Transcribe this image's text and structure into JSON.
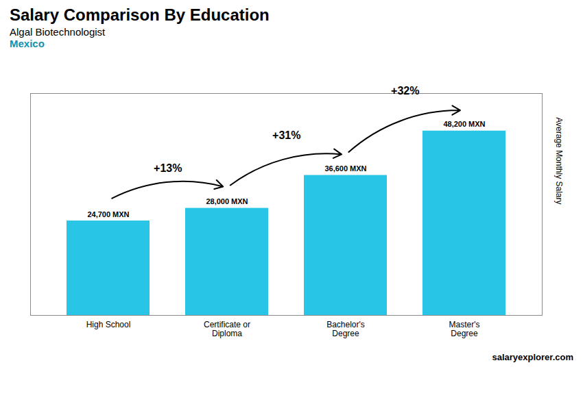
{
  "chart_data": {
    "type": "bar",
    "title": "Salary Comparison By Education",
    "subtitle": "Algal Biotechnologist\nMexico",
    "caption": "salaryexplorer.com",
    "ylabel": "Average Monthly Salary",
    "categories": [
      "High School",
      "Certificate or\nDiploma",
      "Bachelor's\nDegree",
      "Master's\nDegree"
    ],
    "values": [
      24700,
      28000,
      36600,
      48200
    ],
    "value_labels": [
      "24,700 MXN",
      "28,000 MXN",
      "36,600 MXN",
      "48,200 MXN"
    ],
    "data_labels": true,
    "color": "#29C5E6",
    "ylim": [
      0,
      58000
    ],
    "tick_labels": "x",
    "grid": false,
    "annotations": [
      "+13%",
      "+31%",
      "+32%"
    ]
  }
}
